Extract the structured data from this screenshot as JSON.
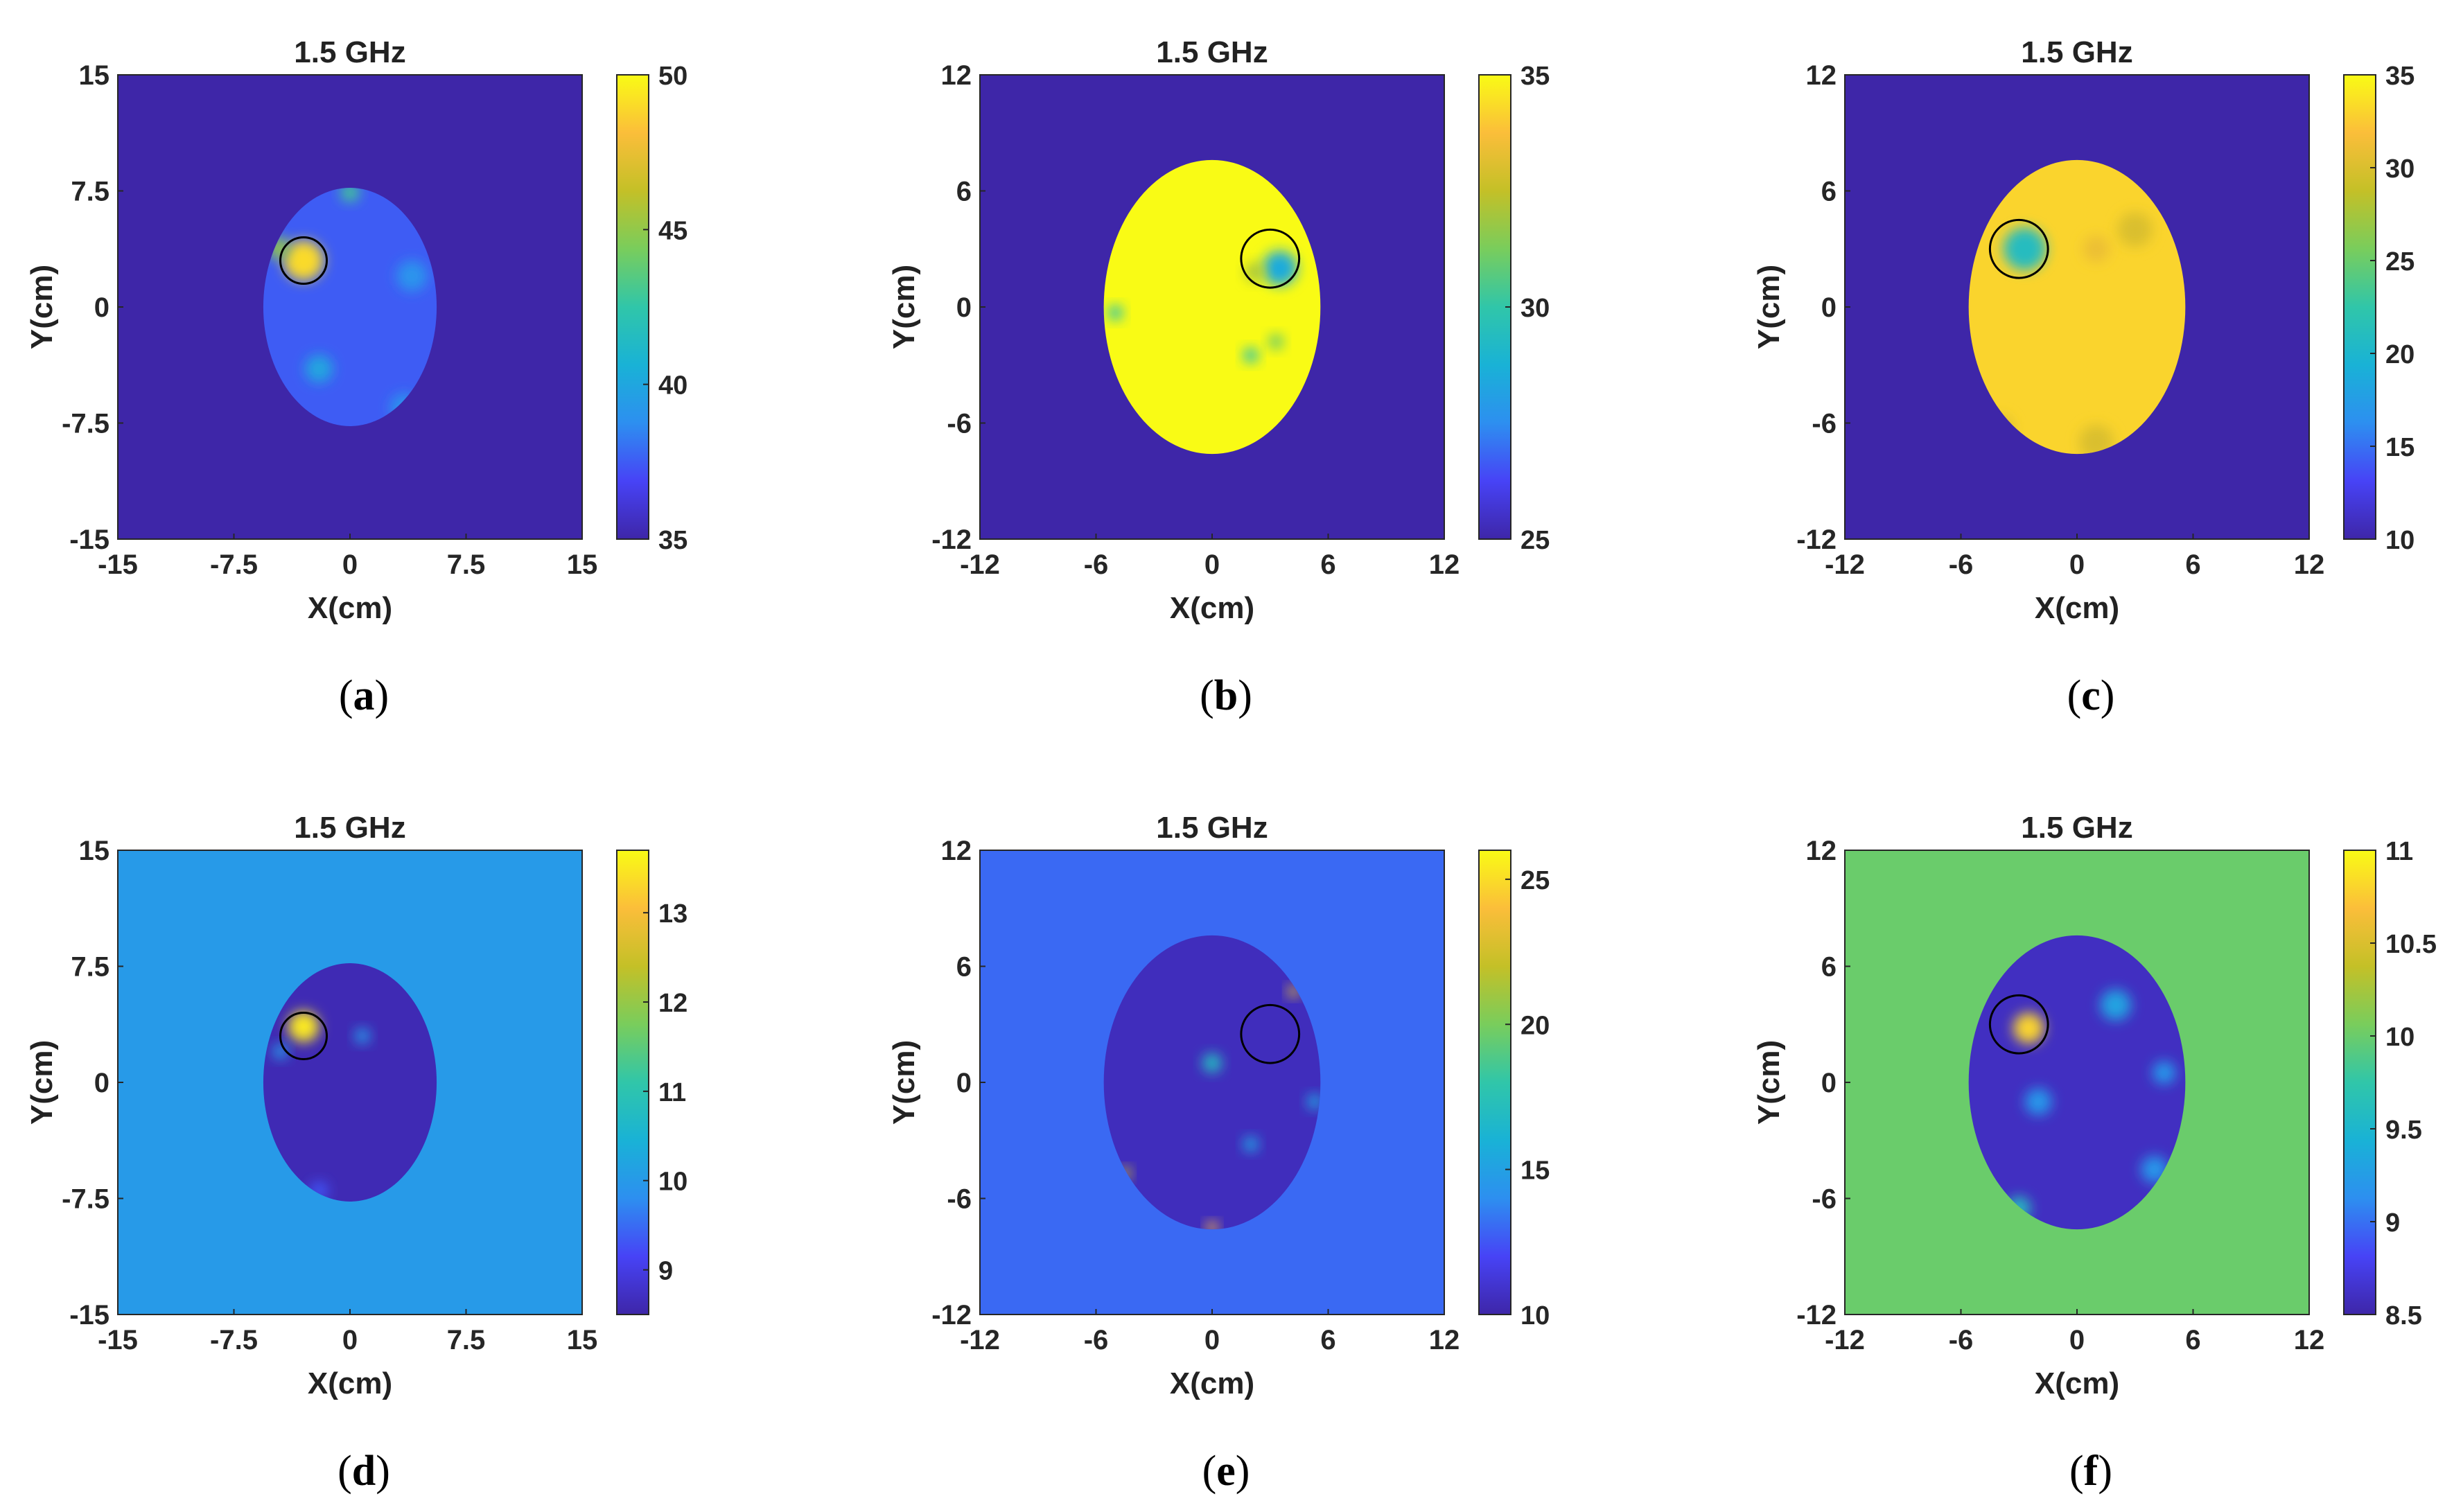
{
  "chart_data": [
    {
      "type": "heatmap",
      "id": "a",
      "caption": "a",
      "title": "1.5 GHz",
      "xlabel": "X(cm)",
      "ylabel": "Y(cm)",
      "xlim": [
        -15,
        15
      ],
      "ylim": [
        -15,
        15
      ],
      "xticks": [
        "-15",
        "-7.5",
        "0",
        "7.5",
        "15"
      ],
      "yticks": [
        "-15",
        "-7.5",
        "0",
        "7.5",
        "15"
      ],
      "clim": [
        35,
        50
      ],
      "cbar_ticks": [
        {
          "v": 35,
          "label": "35"
        },
        {
          "v": 40,
          "label": "40"
        },
        {
          "v": 45,
          "label": "45"
        },
        {
          "v": 50,
          "label": "50"
        }
      ],
      "background_value": 35,
      "ellipse_center": [
        0,
        0
      ],
      "ellipse_radii": [
        5.6,
        7.7
      ],
      "ellipse_base_value": 37.5,
      "blobs": [
        {
          "x": -3,
          "y": 3,
          "value": 49,
          "r": 1.3
        },
        {
          "x": -4.6,
          "y": 3.8,
          "value": 45,
          "r": 0.7
        },
        {
          "x": 0,
          "y": 7.4,
          "value": 43,
          "r": 0.6
        },
        {
          "x": -2,
          "y": -4,
          "value": 40,
          "r": 0.9
        },
        {
          "x": 3.5,
          "y": -6.5,
          "value": 39,
          "r": 0.9
        },
        {
          "x": 4,
          "y": 2,
          "value": 39,
          "r": 1
        }
      ],
      "target_circle": {
        "x": -3,
        "y": 3,
        "r": 1.5
      }
    },
    {
      "type": "heatmap",
      "id": "b",
      "caption": "b",
      "title": "1.5 GHz",
      "xlabel": "X(cm)",
      "ylabel": "Y(cm)",
      "xlim": [
        -12,
        12
      ],
      "ylim": [
        -12,
        12
      ],
      "xticks": [
        "-12",
        "-6",
        "0",
        "6",
        "12"
      ],
      "yticks": [
        "-12",
        "-6",
        "0",
        "6",
        "12"
      ],
      "clim": [
        25,
        35
      ],
      "cbar_ticks": [
        {
          "v": 25,
          "label": "25"
        },
        {
          "v": 30,
          "label": "30"
        },
        {
          "v": 35,
          "label": "35"
        }
      ],
      "background_value": 25,
      "ellipse_center": [
        0,
        0
      ],
      "ellipse_radii": [
        5.6,
        7.6
      ],
      "ellipse_base_value": 35,
      "blobs": [
        {
          "x": 3.5,
          "y": 2,
          "value": 28.5,
          "r": 0.9
        },
        {
          "x": 2.2,
          "y": 1.8,
          "value": 32,
          "r": 0.5
        },
        {
          "x": -5,
          "y": -0.3,
          "value": 30,
          "r": 0.4
        },
        {
          "x": 2,
          "y": -2.5,
          "value": 30,
          "r": 0.4
        },
        {
          "x": 3.3,
          "y": -1.8,
          "value": 31,
          "r": 0.4
        }
      ],
      "target_circle": {
        "x": 3,
        "y": 2.5,
        "r": 1.5
      }
    },
    {
      "type": "heatmap",
      "id": "c",
      "caption": "c",
      "title": "1.5 GHz",
      "xlabel": "X(cm)",
      "ylabel": "Y(cm)",
      "xlim": [
        -12,
        12
      ],
      "ylim": [
        -12,
        12
      ],
      "xticks": [
        "-12",
        "-6",
        "0",
        "6",
        "12"
      ],
      "yticks": [
        "-12",
        "-6",
        "0",
        "6",
        "12"
      ],
      "clim": [
        10,
        35
      ],
      "cbar_ticks": [
        {
          "v": 10,
          "label": "10"
        },
        {
          "v": 15,
          "label": "15"
        },
        {
          "v": 20,
          "label": "20"
        },
        {
          "v": 25,
          "label": "25"
        },
        {
          "v": 30,
          "label": "30"
        },
        {
          "v": 35,
          "label": "35"
        }
      ],
      "background_value": 10,
      "ellipse_center": [
        0,
        0
      ],
      "ellipse_radii": [
        5.6,
        7.6
      ],
      "ellipse_base_value": 33,
      "blobs": [
        {
          "x": -2.7,
          "y": 3,
          "value": 21,
          "r": 1.1
        },
        {
          "x": 3,
          "y": 4,
          "value": 30,
          "r": 0.9
        },
        {
          "x": 1,
          "y": -7,
          "value": 30,
          "r": 0.9
        },
        {
          "x": -4,
          "y": -6.3,
          "value": 30,
          "r": 0.7
        },
        {
          "x": 1,
          "y": 3,
          "value": 31,
          "r": 0.7
        }
      ],
      "target_circle": {
        "x": -3,
        "y": 3,
        "r": 1.5
      }
    },
    {
      "type": "heatmap",
      "id": "d",
      "caption": "d",
      "title": "1.5 GHz",
      "xlabel": "X(cm)",
      "ylabel": "Y(cm)",
      "xlim": [
        -15,
        15
      ],
      "ylim": [
        -15,
        15
      ],
      "xticks": [
        "-15",
        "-7.5",
        "0",
        "7.5",
        "15"
      ],
      "yticks": [
        "-15",
        "-7.5",
        "0",
        "7.5",
        "15"
      ],
      "clim": [
        8.5,
        13.7
      ],
      "cbar_ticks": [
        {
          "v": 9,
          "label": "9"
        },
        {
          "v": 10,
          "label": "10"
        },
        {
          "v": 11,
          "label": "11"
        },
        {
          "v": 12,
          "label": "12"
        },
        {
          "v": 13,
          "label": "13"
        }
      ],
      "background_value": 10,
      "ellipse_center": [
        0,
        0
      ],
      "ellipse_radii": [
        5.6,
        7.7
      ],
      "ellipse_base_value": 8.6,
      "blobs": [
        {
          "x": -3,
          "y": 3.6,
          "value": 13.5,
          "r": 1
        },
        {
          "x": 0.8,
          "y": 3,
          "value": 10,
          "r": 0.5
        },
        {
          "x": -4.5,
          "y": 2,
          "value": 10,
          "r": 0.5
        },
        {
          "x": -2,
          "y": -7,
          "value": 9.3,
          "r": 0.6
        }
      ],
      "target_circle": {
        "x": -3,
        "y": 3,
        "r": 1.5
      }
    },
    {
      "type": "heatmap",
      "id": "e",
      "caption": "e",
      "title": "1.5 GHz",
      "xlabel": "X(cm)",
      "ylabel": "Y(cm)",
      "xlim": [
        -12,
        12
      ],
      "ylim": [
        -12,
        12
      ],
      "xticks": [
        "-12",
        "-6",
        "0",
        "6",
        "12"
      ],
      "yticks": [
        "-12",
        "-6",
        "0",
        "6",
        "12"
      ],
      "clim": [
        10,
        26
      ],
      "cbar_ticks": [
        {
          "v": 10,
          "label": "10"
        },
        {
          "v": 15,
          "label": "15"
        },
        {
          "v": 20,
          "label": "20"
        },
        {
          "v": 25,
          "label": "25"
        }
      ],
      "background_value": 13,
      "ellipse_center": [
        0,
        0
      ],
      "ellipse_radii": [
        5.6,
        7.6
      ],
      "ellipse_base_value": 10.5,
      "blobs": [
        {
          "x": 0,
          "y": 1,
          "value": 17,
          "r": 0.5
        },
        {
          "x": 4.2,
          "y": 4.7,
          "value": 23,
          "r": 0.3
        },
        {
          "x": -4.5,
          "y": -4.7,
          "value": 22,
          "r": 0.3
        },
        {
          "x": 0,
          "y": -7.5,
          "value": 24,
          "r": 0.3
        },
        {
          "x": 2,
          "y": -3.2,
          "value": 15,
          "r": 0.4
        },
        {
          "x": 5.3,
          "y": -1,
          "value": 15,
          "r": 0.4
        }
      ],
      "target_circle": {
        "x": 3,
        "y": 2.5,
        "r": 1.5
      }
    },
    {
      "type": "heatmap",
      "id": "f",
      "caption": "f",
      "title": "1.5 GHz",
      "xlabel": "X(cm)",
      "ylabel": "Y(cm)",
      "xlim": [
        -12,
        12
      ],
      "ylim": [
        -12,
        12
      ],
      "xticks": [
        "-12",
        "-6",
        "0",
        "6",
        "12"
      ],
      "yticks": [
        "-12",
        "-6",
        "0",
        "6",
        "12"
      ],
      "clim": [
        8.5,
        11
      ],
      "cbar_ticks": [
        {
          "v": 8.5,
          "label": "8.5"
        },
        {
          "v": 9,
          "label": "9"
        },
        {
          "v": 9.5,
          "label": "9.5"
        },
        {
          "v": 10,
          "label": "10"
        },
        {
          "v": 10.5,
          "label": "10.5"
        },
        {
          "v": 11,
          "label": "11"
        }
      ],
      "background_value": 10,
      "ellipse_center": [
        0,
        0
      ],
      "ellipse_radii": [
        5.6,
        7.6
      ],
      "ellipse_base_value": 8.6,
      "blobs": [
        {
          "x": -2.5,
          "y": 2.8,
          "value": 10.8,
          "r": 0.8
        },
        {
          "x": 2,
          "y": 4,
          "value": 9.3,
          "r": 0.8
        },
        {
          "x": -2,
          "y": -1,
          "value": 9.2,
          "r": 0.7
        },
        {
          "x": -3,
          "y": -6.5,
          "value": 9.6,
          "r": 0.6
        },
        {
          "x": 4,
          "y": -4.5,
          "value": 9.2,
          "r": 0.7
        },
        {
          "x": 4.5,
          "y": 0.5,
          "value": 9.2,
          "r": 0.6
        }
      ],
      "target_circle": {
        "x": -3,
        "y": 3,
        "r": 1.5
      }
    }
  ]
}
